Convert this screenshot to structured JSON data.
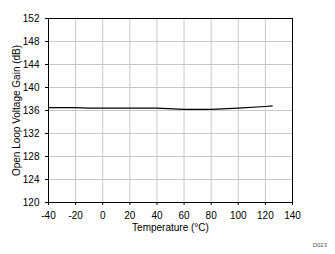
{
  "chart_data": {
    "type": "line",
    "x_label": "Temperature (°C)",
    "y_label": "Open Loop Voltage Gain (dB)",
    "annotation": "D023",
    "x": [
      -40,
      -20,
      -10,
      0,
      20,
      40,
      60,
      80,
      100,
      120,
      125
    ],
    "values": [
      136.5,
      136.5,
      136.4,
      136.4,
      136.4,
      136.4,
      136.2,
      136.2,
      136.4,
      136.7,
      136.8
    ],
    "color": "#000000",
    "xlim": [
      -40,
      140
    ],
    "xticks": [
      -40,
      -20,
      0,
      20,
      40,
      60,
      80,
      100,
      120,
      140
    ],
    "ylim": [
      120,
      152
    ],
    "yticks": [
      120,
      124,
      128,
      132,
      136,
      140,
      144,
      148,
      152
    ],
    "grid": true
  }
}
